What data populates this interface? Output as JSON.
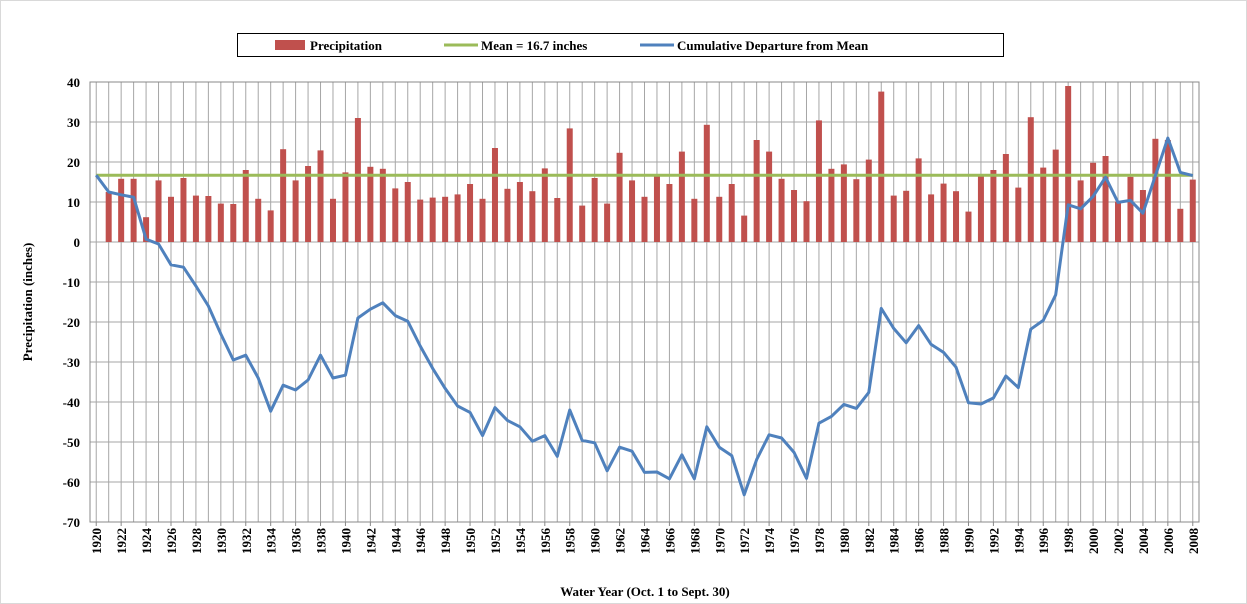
{
  "chart_data": {
    "type": "bar_line",
    "x_label": "Water Year (Oct. 1 to Sept. 30)",
    "y_label": "Precipitation (inches)",
    "x": [
      1920,
      1921,
      1922,
      1923,
      1924,
      1925,
      1926,
      1927,
      1928,
      1929,
      1930,
      1931,
      1932,
      1933,
      1934,
      1935,
      1936,
      1937,
      1938,
      1939,
      1940,
      1941,
      1942,
      1943,
      1944,
      1945,
      1946,
      1947,
      1948,
      1949,
      1950,
      1951,
      1952,
      1953,
      1954,
      1955,
      1956,
      1957,
      1958,
      1959,
      1960,
      1961,
      1962,
      1963,
      1964,
      1965,
      1966,
      1967,
      1968,
      1969,
      1970,
      1971,
      1972,
      1973,
      1974,
      1975,
      1976,
      1977,
      1978,
      1979,
      1980,
      1981,
      1982,
      1983,
      1984,
      1985,
      1986,
      1987,
      1988,
      1989,
      1990,
      1991,
      1992,
      1993,
      1994,
      1995,
      1996,
      1997,
      1998,
      1999,
      2000,
      2001,
      2002,
      2003,
      2004,
      2005,
      2006,
      2007,
      2008
    ],
    "series": [
      {
        "name": "Precipitation",
        "kind": "bar",
        "color": "#c0504d",
        "values": [
          null,
          12.5,
          15.8,
          15.8,
          6.2,
          15.4,
          11.3,
          16,
          11.6,
          11.5,
          9.6,
          9.5,
          18,
          10.8,
          7.9,
          23.2,
          15.4,
          19,
          22.9,
          10.8,
          17.4,
          31,
          18.8,
          18.3,
          13.4,
          15,
          10.6,
          11.1,
          11.3,
          11.9,
          14.5,
          10.8,
          23.5,
          13.3,
          15,
          12.7,
          18.4,
          11,
          28.4,
          9.1,
          16,
          9.6,
          22.3,
          15.4,
          11.3,
          16.4,
          14.5,
          22.6,
          10.8,
          29.3,
          11.3,
          14.5,
          6.6,
          25.5,
          22.6,
          15.8,
          13,
          10.2,
          30.4,
          18.3,
          19.4,
          15.7,
          20.6,
          37.6,
          11.6,
          12.8,
          20.9,
          11.9,
          14.6,
          12.7,
          7.6,
          16.4,
          18,
          22,
          13.6,
          31.2,
          18.6,
          23.1,
          39,
          15.4,
          19.8,
          21.5,
          10.1,
          16.3,
          13,
          25.8,
          25.5,
          8.3,
          15.6
        ]
      },
      {
        "name": "Cumulative Departure from Mean",
        "kind": "line",
        "color": "#4f81bd",
        "values": [
          16.7,
          12.5,
          11.8,
          11.2,
          0.7,
          -0.5,
          -5.7,
          -6.3,
          -11,
          -16,
          -23,
          -29.5,
          -28.3,
          -34,
          -42.3,
          -35.8,
          -37,
          -34.5,
          -28.3,
          -34,
          -33.3,
          -19,
          -16.8,
          -15.2,
          -18.4,
          -19.8,
          -26,
          -31.6,
          -36.6,
          -41,
          -42.6,
          -48.4,
          -41.4,
          -44.6,
          -46.2,
          -49.8,
          -48.4,
          -53.6,
          -42,
          -49.6,
          -50.2,
          -57.2,
          -51.3,
          -52.3,
          -57.6,
          -57.5,
          -59.2,
          -53.2,
          -59.2,
          -46.2,
          -51.3,
          -53.4,
          -63.2,
          -54.4,
          -48.2,
          -49,
          -52.6,
          -59.1,
          -45.3,
          -43.6,
          -40.6,
          -41.6,
          -37.6,
          -16.6,
          -21.6,
          -25.2,
          -20.9,
          -25.6,
          -27.6,
          -31.3,
          -40.2,
          -40.5,
          -39,
          -33.5,
          -36.4,
          -21.8,
          -19.6,
          -13.2,
          9.3,
          8.3,
          11.4,
          16.2,
          9.9,
          10.4,
          7.2,
          16.6,
          26,
          17.4,
          16.6
        ]
      }
    ],
    "mean_line": {
      "name": "Mean = 16.7 inches",
      "value": 16.7,
      "color": "#9bbb59"
    },
    "xlim": [
      1919.5,
      2008.5
    ],
    "xticks": [
      1920,
      1922,
      1924,
      1926,
      1928,
      1930,
      1932,
      1934,
      1936,
      1938,
      1940,
      1942,
      1944,
      1946,
      1948,
      1950,
      1952,
      1954,
      1956,
      1958,
      1960,
      1962,
      1964,
      1966,
      1968,
      1970,
      1972,
      1974,
      1976,
      1978,
      1980,
      1982,
      1984,
      1986,
      1988,
      1990,
      1992,
      1994,
      1996,
      1998,
      2000,
      2002,
      2004,
      2006,
      2008
    ],
    "ylim": [
      -70,
      40
    ],
    "yticks": [
      -70,
      -60,
      -50,
      -40,
      -30,
      -20,
      -10,
      0,
      10,
      20,
      30,
      40
    ],
    "grid": true,
    "legend": "top"
  }
}
